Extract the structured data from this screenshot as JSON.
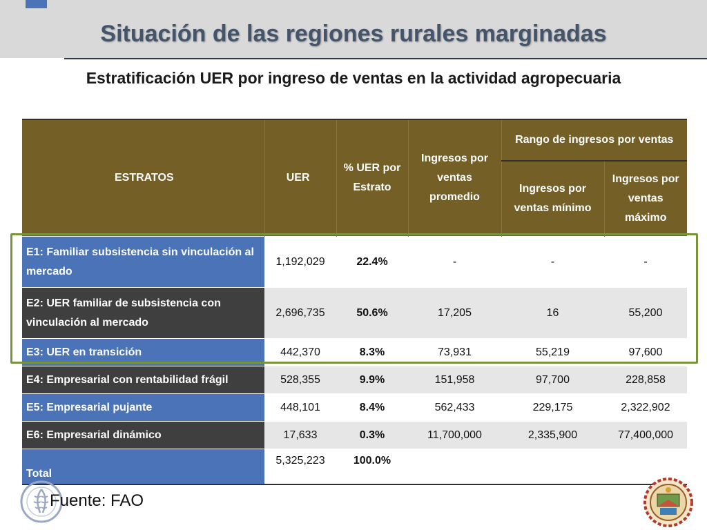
{
  "slide": {
    "title": "Situación de las regiones rurales marginadas",
    "subtitle": "Estratificación UER por ingreso de ventas en la actividad agropecuaria",
    "source": "Fuente: FAO"
  },
  "colors": {
    "header_bg": "#745f26",
    "label_blue": "#4a73b8",
    "label_dark": "#3f3f3f",
    "row_grey": "#e6e6e6",
    "highlight_border": "#77933c",
    "title_text": "#44546a"
  },
  "icons": {
    "fao_logo": "fao-logo-icon",
    "seal": "municipal-seal-icon"
  },
  "table": {
    "headers": {
      "estratos": "ESTRATOS",
      "uer": "UER",
      "pct": "% UER por Estrato",
      "avg": "Ingresos por ventas promedio",
      "range_group": "Rango de ingresos por ventas",
      "min": "Ingresos por ventas mínimo",
      "max": "Ingresos por ventas máximo"
    },
    "rows": [
      {
        "label": "E1: Familiar subsistencia sin vinculación al mercado",
        "uer": "1,192,029",
        "pct": "22.4%",
        "avg": "-",
        "min": "-",
        "max": "-"
      },
      {
        "label": "E2: UER familiar de subsistencia con vinculación al mercado",
        "uer": "2,696,735",
        "pct": "50.6%",
        "avg": "17,205",
        "min": "16",
        "max": "55,200"
      },
      {
        "label": "E3: UER en transición",
        "uer": "442,370",
        "pct": "8.3%",
        "avg": "73,931",
        "min": "55,219",
        "max": "97,600"
      },
      {
        "label": "E4: Empresarial con rentabilidad frágil",
        "uer": "528,355",
        "pct": "9.9%",
        "avg": "151,958",
        "min": "97,700",
        "max": "228,858"
      },
      {
        "label": "E5: Empresarial pujante",
        "uer": "448,101",
        "pct": "8.4%",
        "avg": "562,433",
        "min": "229,175",
        "max": "2,322,902"
      },
      {
        "label": "E6: Empresarial dinámico",
        "uer": "17,633",
        "pct": "0.3%",
        "avg": "11,700,000",
        "min": "2,335,900",
        "max": "77,400,000"
      }
    ],
    "total": {
      "label": "Total",
      "uer": "5,325,223",
      "pct": "100.0%"
    }
  }
}
